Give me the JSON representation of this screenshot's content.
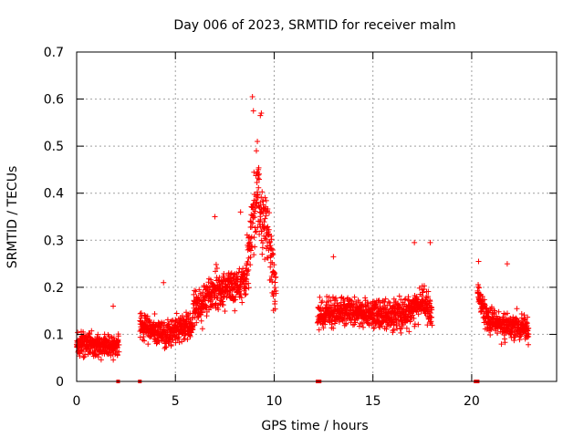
{
  "chart_data": {
    "type": "scatter",
    "title": "Day 006 of 2023, SRMTID for receiver malm",
    "xlabel": "GPS time / hours",
    "ylabel": "SRMTID / TECUs",
    "xlim": [
      0,
      24.3
    ],
    "ylim": [
      0,
      0.7
    ],
    "xticks": [
      0,
      5,
      10,
      15,
      20
    ],
    "xtick_labels": [
      "0",
      "5",
      "10",
      "15",
      "20"
    ],
    "yticks": [
      0,
      0.1,
      0.2,
      0.3,
      0.4,
      0.5,
      0.6,
      0.7
    ],
    "ytick_labels": [
      "0",
      "0.1",
      "0.2",
      "0.3",
      "0.4",
      "0.5",
      "0.6",
      "0.7"
    ],
    "grid": true,
    "marker": "+",
    "color": "#ff0000",
    "zero_markers_x": [
      2.1,
      3.2,
      12.2,
      12.3,
      20.2,
      20.3
    ],
    "segments": [
      {
        "x_start": 0.0,
        "x_end": 2.15,
        "y_knots": [
          [
            0.0,
            0.08
          ],
          [
            1.0,
            0.075
          ],
          [
            2.15,
            0.075
          ]
        ],
        "spread": 0.03
      },
      {
        "x_start": 3.2,
        "x_end": 5.9,
        "y_knots": [
          [
            3.2,
            0.12
          ],
          [
            4.5,
            0.1
          ],
          [
            5.9,
            0.12
          ]
        ],
        "spread": 0.035
      },
      {
        "x_start": 5.9,
        "x_end": 8.6,
        "y_knots": [
          [
            5.9,
            0.15
          ],
          [
            7.0,
            0.19
          ],
          [
            8.6,
            0.21
          ]
        ],
        "spread": 0.05
      },
      {
        "x_start": 8.6,
        "x_end": 10.1,
        "y_knots": [
          [
            8.6,
            0.25
          ],
          [
            9.1,
            0.4
          ],
          [
            9.6,
            0.33
          ],
          [
            10.1,
            0.19
          ]
        ],
        "spread": 0.1
      },
      {
        "x_start": 12.2,
        "x_end": 18.0,
        "y_knots": [
          [
            12.2,
            0.14
          ],
          [
            13.5,
            0.15
          ],
          [
            15.0,
            0.14
          ],
          [
            16.5,
            0.14
          ],
          [
            17.5,
            0.17
          ],
          [
            18.0,
            0.14
          ]
        ],
        "spread": 0.04
      },
      {
        "x_start": 20.3,
        "x_end": 22.9,
        "y_knots": [
          [
            20.3,
            0.19
          ],
          [
            20.8,
            0.13
          ],
          [
            21.5,
            0.12
          ],
          [
            22.9,
            0.11
          ]
        ],
        "spread": 0.035
      }
    ],
    "peaks": [
      [
        8.9,
        0.605
      ],
      [
        8.95,
        0.575
      ],
      [
        9.35,
        0.57
      ],
      [
        9.3,
        0.565
      ],
      [
        9.15,
        0.51
      ],
      [
        9.1,
        0.49
      ],
      [
        9.2,
        0.45
      ],
      [
        7.0,
        0.35
      ],
      [
        8.3,
        0.36
      ],
      [
        17.9,
        0.295
      ],
      [
        17.1,
        0.295
      ],
      [
        20.35,
        0.255
      ],
      [
        21.8,
        0.25
      ],
      [
        13.0,
        0.265
      ],
      [
        4.4,
        0.21
      ],
      [
        1.85,
        0.16
      ]
    ]
  }
}
